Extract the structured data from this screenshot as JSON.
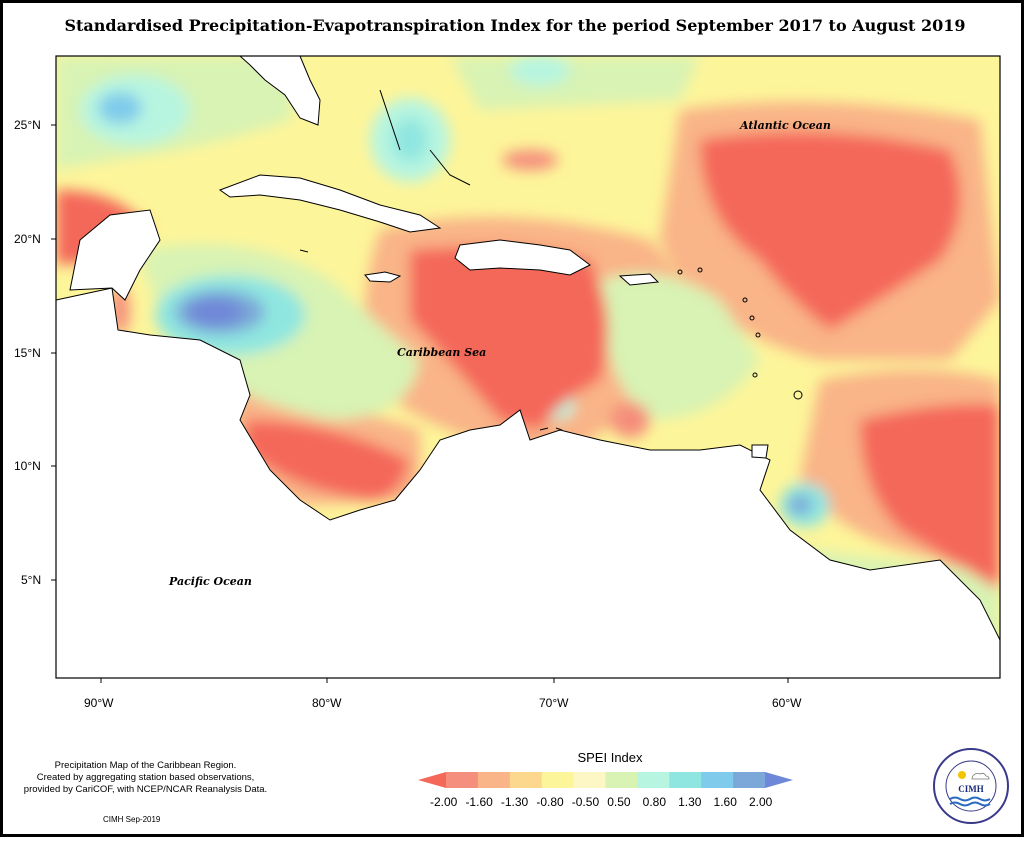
{
  "title": "Standardised Precipitation-Evapotranspiration Index for the period September 2017 to August 2019",
  "map": {
    "lat_ticks": [
      "25°N",
      "20°N",
      "15°N",
      "10°N",
      "5°N"
    ],
    "lon_ticks": [
      "90°W",
      "80°W",
      "70°W",
      "60°W"
    ],
    "region_labels": {
      "atlantic": "Atlantic Ocean",
      "caribbean": "Caribbean Sea",
      "pacific": "Pacific Ocean"
    }
  },
  "legend": {
    "title": "SPEI Index",
    "breaks": [
      "-2.00",
      "-1.60",
      "-1.30",
      "-0.80",
      "-0.50",
      "0.50",
      "0.80",
      "1.30",
      "1.60",
      "2.00"
    ],
    "colors": [
      "#f4685a",
      "#f58e7c",
      "#f9b487",
      "#fbd88e",
      "#fdf59a",
      "#fdf7c6",
      "#d8f3b4",
      "#b7f5e0",
      "#8fe6e0",
      "#7fcbeb",
      "#7ba8d8",
      "#6f87d8"
    ]
  },
  "note": {
    "lines": [
      "Precipitation Map of the Caribbean Region.",
      "Created by aggregating station based observations,",
      "provided by CariCOF, with NCEP/NCAR Reanalysis Data."
    ],
    "credit": "CIMH Sep-2019"
  },
  "logo": {
    "text": "CIMH",
    "ring_text": "Caribbean Institute for Meteorology and Hydrology"
  }
}
